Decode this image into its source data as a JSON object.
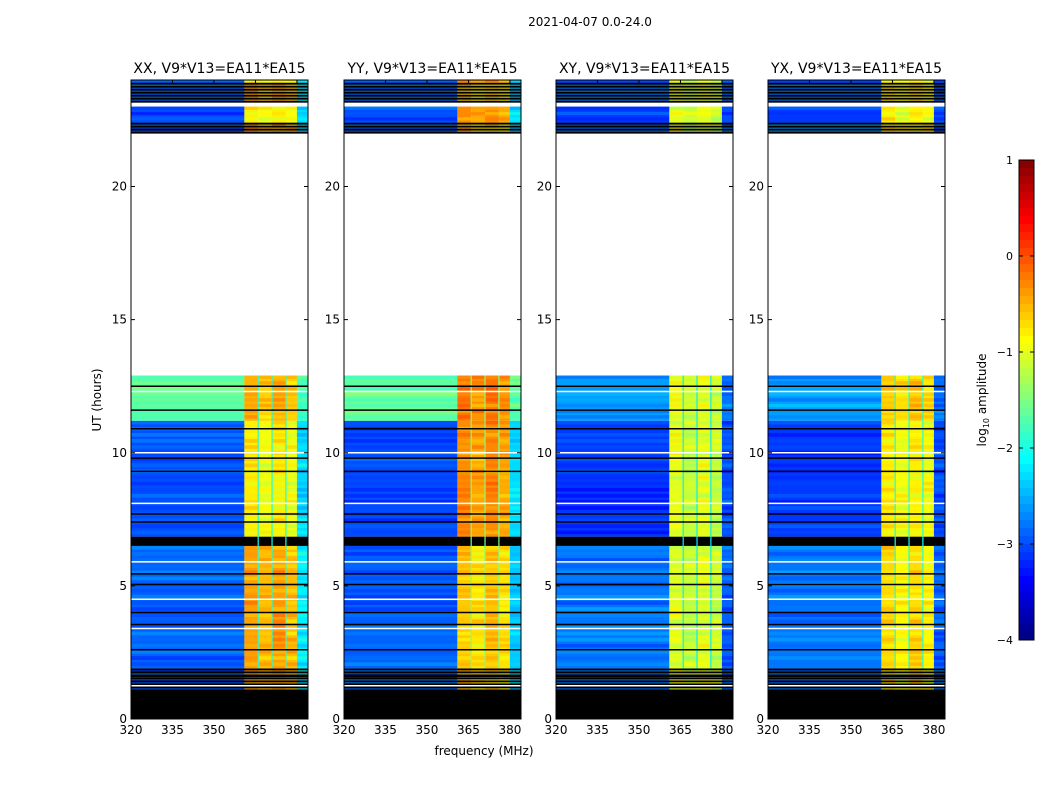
{
  "chart_data": {
    "type": "heatmap",
    "title": "2021-04-07 0.0-24.0",
    "xlabel": "frequency (MHz)",
    "ylabel": "UT (hours)",
    "xlim": [
      320,
      384
    ],
    "ylim": [
      0,
      24
    ],
    "xticks": [
      320,
      335,
      350,
      365,
      380
    ],
    "yticks": [
      0,
      5,
      10,
      15,
      20
    ],
    "colorbar": {
      "label_main": "log",
      "label_sub": "10",
      "label_rest": " amplitude",
      "range": [
        -4,
        1
      ],
      "ticks": [
        1,
        0,
        -1,
        -2,
        -3,
        -4
      ],
      "tick_labels": [
        "1",
        "0",
        "−1",
        "−2",
        "−3",
        "−4"
      ],
      "colormap": "jet"
    },
    "time_segments": [
      {
        "t": [
          0.0,
          1.05
        ],
        "state": "flagged"
      },
      {
        "t": [
          1.05,
          1.9
        ],
        "state": "partial"
      },
      {
        "t": [
          1.9,
          6.5
        ],
        "state": "data",
        "epoch": 0
      },
      {
        "t": [
          6.5,
          6.85
        ],
        "state": "flagged"
      },
      {
        "t": [
          6.85,
          11.2
        ],
        "state": "data",
        "epoch": 1
      },
      {
        "t": [
          11.2,
          12.9
        ],
        "state": "data",
        "epoch": 2
      },
      {
        "t": [
          12.9,
          22.0
        ],
        "state": "empty"
      },
      {
        "t": [
          22.0,
          22.4
        ],
        "state": "partial"
      },
      {
        "t": [
          22.4,
          23.0
        ],
        "state": "data",
        "epoch": 1
      },
      {
        "t": [
          23.0,
          23.2
        ],
        "state": "empty"
      },
      {
        "t": [
          23.2,
          23.9
        ],
        "state": "partial"
      },
      {
        "t": [
          23.9,
          24.0
        ],
        "state": "data",
        "epoch": 1
      }
    ],
    "flag_lines_hours": [
      1.25,
      1.6,
      2.6,
      3.4,
      3.55,
      4.0,
      4.5,
      5.05,
      5.45,
      5.9,
      7.4,
      7.7,
      8.1,
      9.3,
      9.8,
      10.0,
      10.9,
      11.6,
      12.3,
      12.5
    ],
    "band_edges_MHz": [
      320,
      361,
      366,
      371,
      376,
      380,
      384
    ],
    "panels": [
      {
        "title": "XX, V9*V13=EA11*EA15",
        "low": [
          -2.9,
          -3.0,
          -1.7
        ],
        "high": [
          -0.4,
          -0.8,
          -0.5
        ],
        "edge": [
          -2.2,
          -2.3,
          -1.8
        ]
      },
      {
        "title": "YY, V9*V13=EA11*EA15",
        "low": [
          -2.9,
          -3.0,
          -1.6
        ],
        "high": [
          -0.6,
          -0.3,
          -0.2
        ],
        "edge": [
          -2.4,
          -2.3,
          -1.7
        ]
      },
      {
        "title": "XY, V9*V13=EA11*EA15",
        "low": [
          -2.8,
          -3.1,
          -2.6
        ],
        "high": [
          -1.0,
          -1.0,
          -1.0
        ],
        "edge": [
          -2.9,
          -3.0,
          -2.8
        ]
      },
      {
        "title": "YX, V9*V13=EA11*EA15",
        "low": [
          -2.8,
          -3.1,
          -2.6
        ],
        "high": [
          -0.7,
          -0.8,
          -0.6
        ],
        "edge": [
          -2.9,
          -3.0,
          -2.8
        ]
      }
    ]
  }
}
